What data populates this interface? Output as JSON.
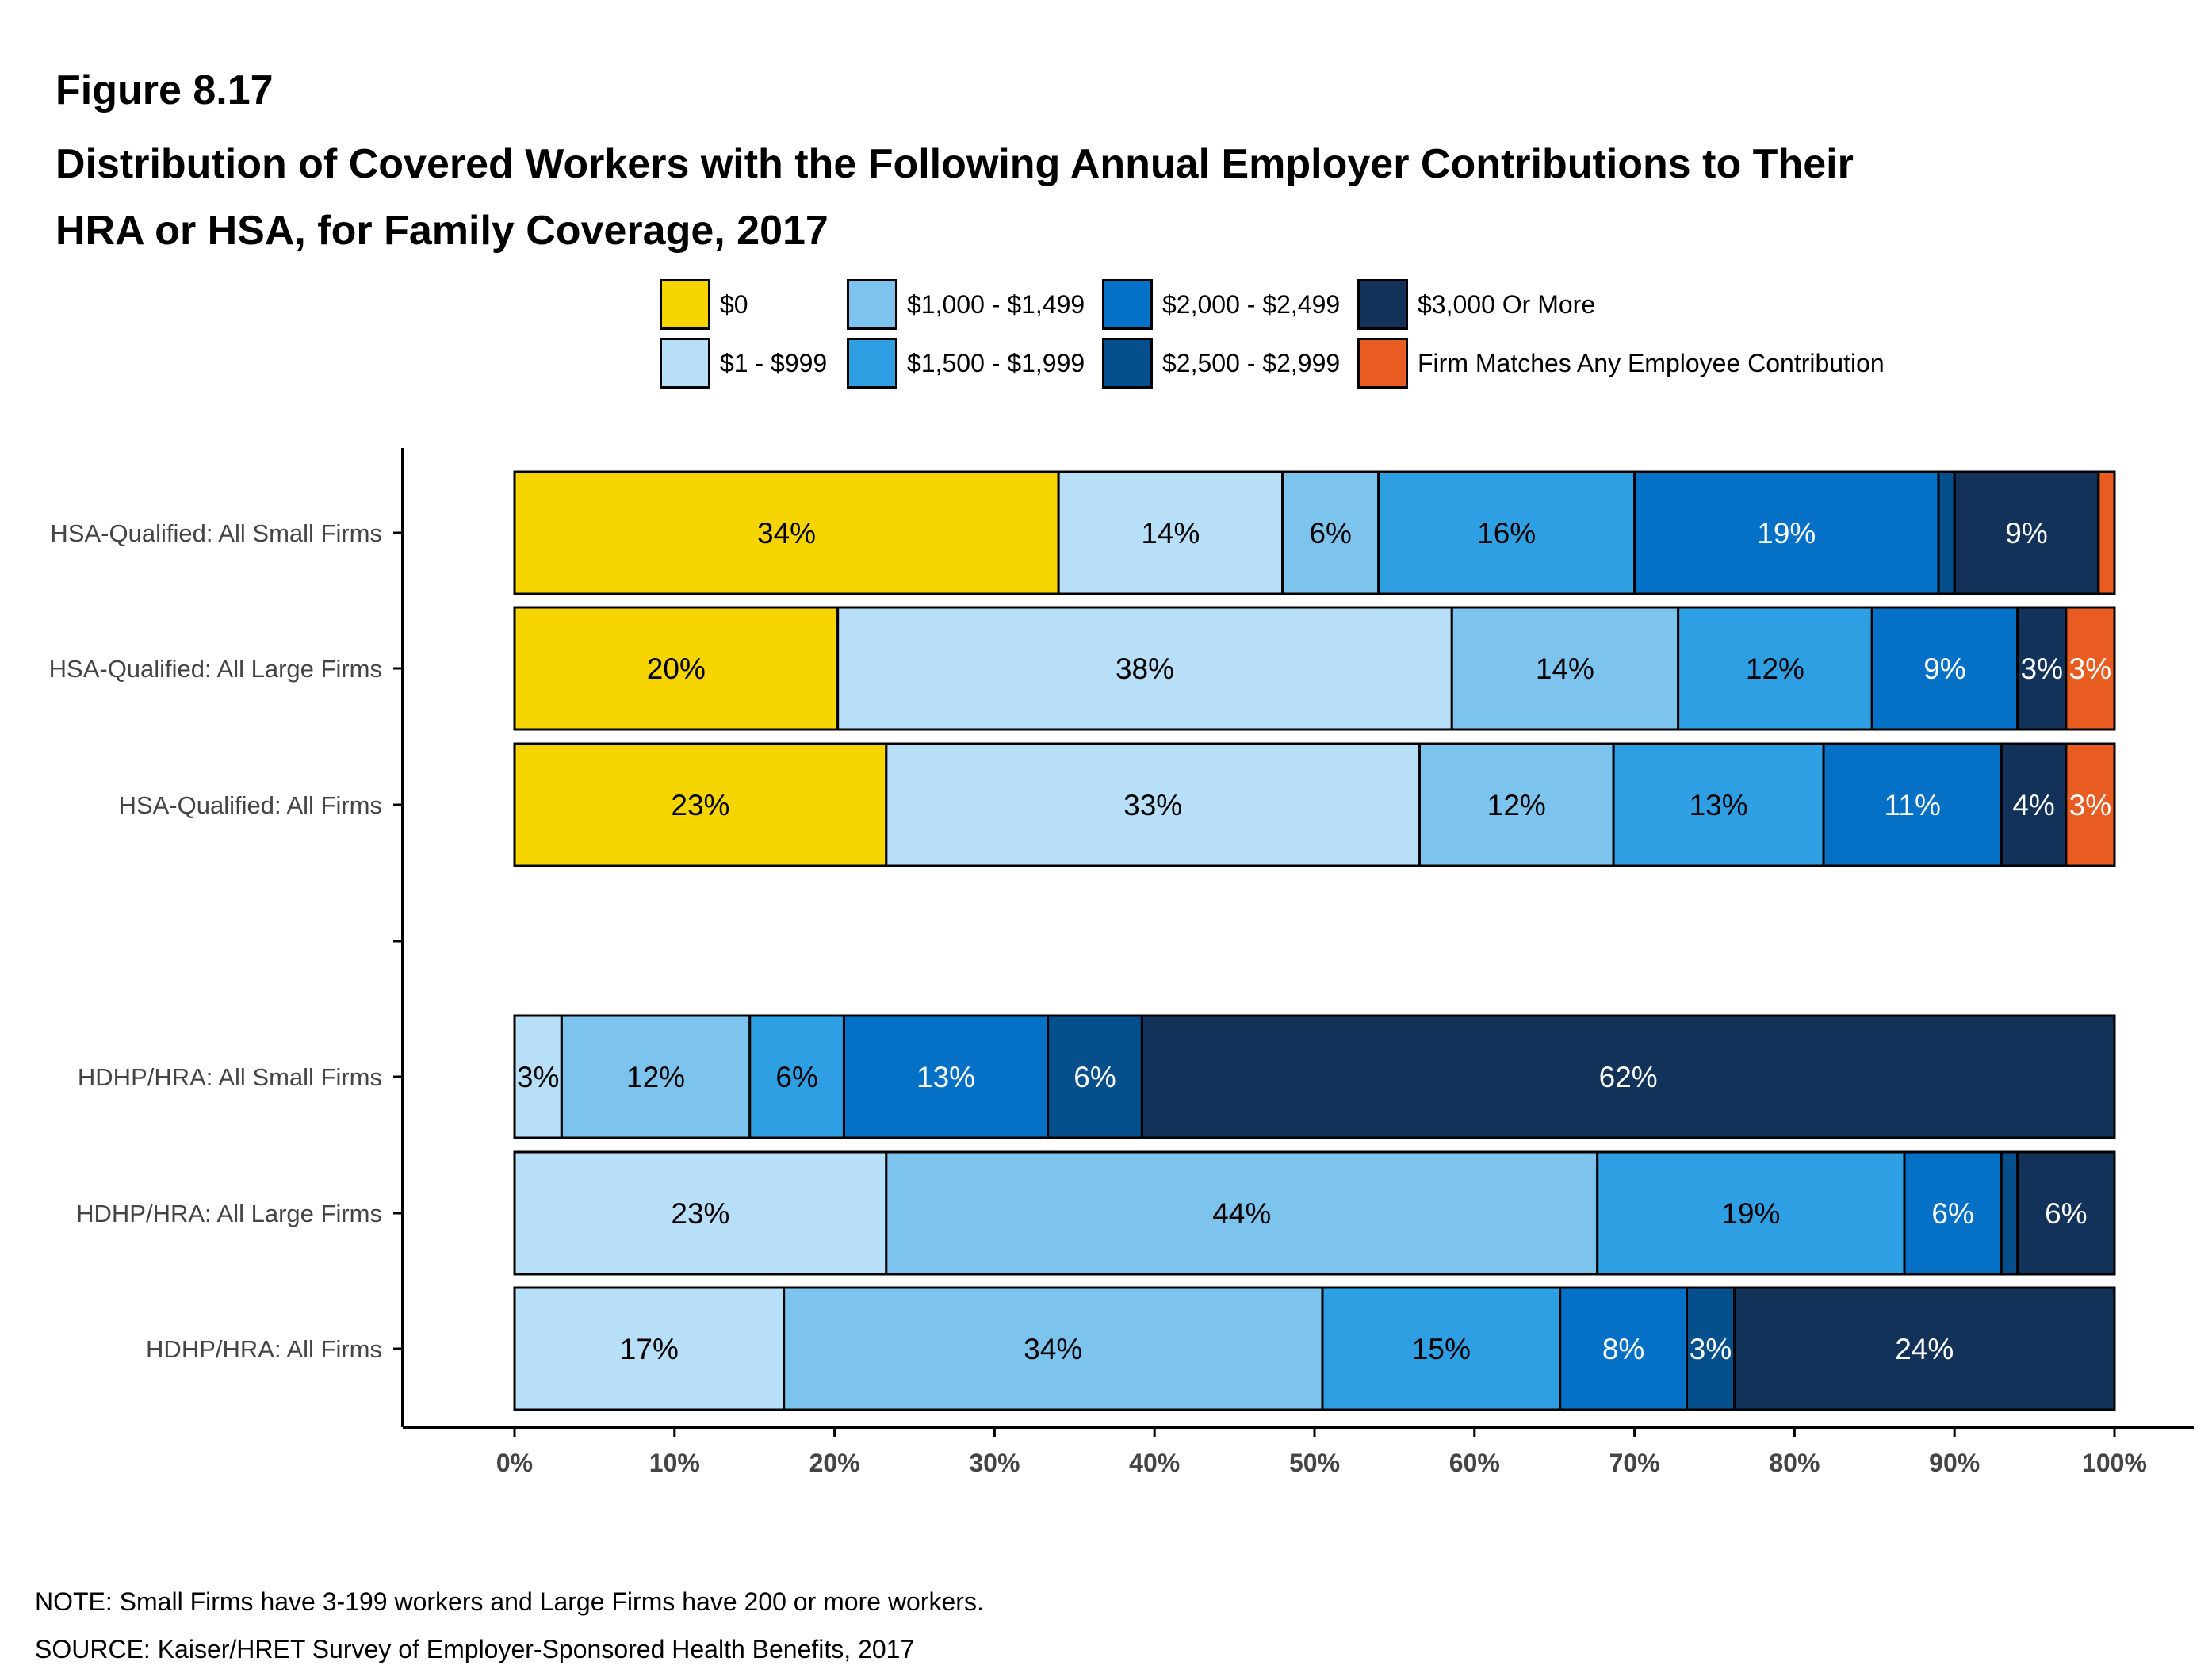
{
  "figure_label": "Figure 8.17",
  "title_line1": "Distribution of Covered Workers with the Following Annual Employer Contributions to Their",
  "title_line2": "HRA or HSA, for Family Coverage, 2017",
  "note": "NOTE: Small Firms have 3-199 workers and Large Firms have 200 or more workers.",
  "source": "SOURCE: Kaiser/HRET Survey of Employer-Sponsored Health Benefits, 2017",
  "colors": {
    "c0": "#f5d400",
    "c1": "#b7dff7",
    "c2": "#7cc4ee",
    "c3": "#2f9fe3",
    "c4": "#0470c6",
    "c5": "#044f8c",
    "c6": "#12325a",
    "c7": "#e85c22"
  },
  "legend": [
    {
      "label": "$0",
      "color": "#f5d400"
    },
    {
      "label": "$1 - $999",
      "color": "#b7dff7"
    },
    {
      "label": "$1,000 - $1,499",
      "color": "#7cc4ee"
    },
    {
      "label": "$1,500 - $1,999",
      "color": "#2f9fe3"
    },
    {
      "label": "$2,000 - $2,499",
      "color": "#0470c6"
    },
    {
      "label": "$2,500 - $2,999",
      "color": "#044f8c"
    },
    {
      "label": "$3,000 Or More",
      "color": "#12325a"
    },
    {
      "label": "Firm Matches Any Employee Contribution",
      "color": "#e85c22"
    }
  ],
  "chart_data": {
    "type": "bar",
    "orientation": "horizontal",
    "stacked": true,
    "categories": [
      "HSA-Qualified: All Small Firms",
      "HSA-Qualified: All Large Firms",
      "HSA-Qualified: All Firms",
      "HDHP/HRA: All Small Firms",
      "HDHP/HRA: All Large Firms",
      "HDHP/HRA: All Firms"
    ],
    "series": [
      {
        "name": "$0",
        "values": [
          34,
          20,
          23,
          0,
          0,
          0
        ],
        "labels": [
          "34%",
          "20%",
          "23%",
          "",
          "",
          ""
        ]
      },
      {
        "name": "$1 - $999",
        "values": [
          14,
          38,
          33,
          3,
          23,
          17
        ],
        "labels": [
          "14%",
          "38%",
          "33%",
          "3%",
          "23%",
          "17%"
        ]
      },
      {
        "name": "$1,000 - $1,499",
        "values": [
          6,
          14,
          12,
          12,
          44,
          34
        ],
        "labels": [
          "6%",
          "14%",
          "12%",
          "12%",
          "44%",
          "34%"
        ]
      },
      {
        "name": "$1,500 - $1,999",
        "values": [
          16,
          12,
          13,
          6,
          19,
          15
        ],
        "labels": [
          "16%",
          "12%",
          "13%",
          "6%",
          "19%",
          "15%"
        ]
      },
      {
        "name": "$2,000 - $2,499",
        "values": [
          19,
          9,
          11,
          13,
          6,
          8
        ],
        "labels": [
          "19%",
          "9%",
          "11%",
          "13%",
          "6%",
          "8%"
        ]
      },
      {
        "name": "$2,500 - $2,999",
        "values": [
          1,
          0,
          0,
          6,
          1,
          3
        ],
        "labels": [
          "",
          "",
          "",
          "6%",
          "",
          "3%"
        ]
      },
      {
        "name": "$3,000 Or More",
        "values": [
          9,
          3,
          4,
          62,
          6,
          24
        ],
        "labels": [
          "9%",
          "3%",
          "4%",
          "62%",
          "6%",
          "24%"
        ]
      },
      {
        "name": "Firm Matches Any Employee Contribution",
        "values": [
          1,
          3,
          3,
          0,
          0,
          0
        ],
        "labels": [
          "",
          "3%",
          "3%",
          "",
          "",
          ""
        ]
      }
    ],
    "xlim": [
      0,
      100
    ],
    "xticks": [
      "0%",
      "10%",
      "20%",
      "30%",
      "40%",
      "50%",
      "60%",
      "70%",
      "80%",
      "90%",
      "100%"
    ],
    "xlabel": "",
    "ylabel": "",
    "legend_position": "top",
    "grid": false
  }
}
